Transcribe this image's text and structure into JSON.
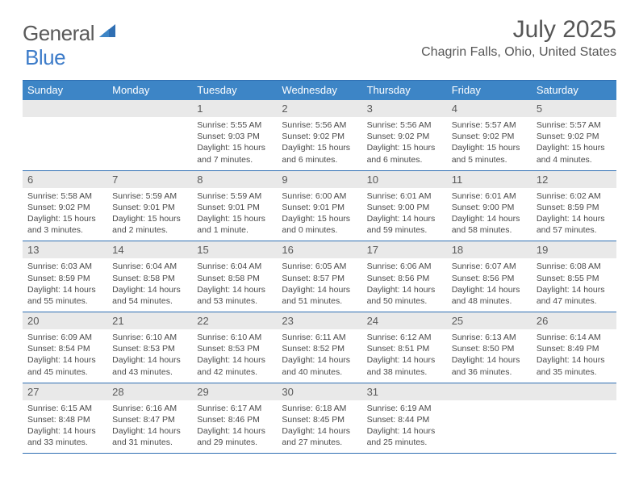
{
  "brand": {
    "word1": "General",
    "word2": "Blue"
  },
  "title": "July 2025",
  "location": "Chagrin Falls, Ohio, United States",
  "colors": {
    "headerBar": "#3d85c6",
    "rule": "#2f6fb3",
    "dayNumBg": "#e9e9e9",
    "text": "#4a4a4a",
    "brandGray": "#5a5a5a",
    "brandBlue": "#3d7cc9",
    "bg": "#ffffff"
  },
  "fonts": {
    "title_pt": 30,
    "location_pt": 16,
    "dow_pt": 13,
    "daynum_pt": 13,
    "body_pt": 10.5,
    "logo_pt": 26
  },
  "daysOfWeek": [
    "Sunday",
    "Monday",
    "Tuesday",
    "Wednesday",
    "Thursday",
    "Friday",
    "Saturday"
  ],
  "weeks": [
    [
      {
        "n": "",
        "sunrise": "",
        "sunset": "",
        "daylight1": "",
        "daylight2": ""
      },
      {
        "n": "",
        "sunrise": "",
        "sunset": "",
        "daylight1": "",
        "daylight2": ""
      },
      {
        "n": "1",
        "sunrise": "Sunrise: 5:55 AM",
        "sunset": "Sunset: 9:03 PM",
        "daylight1": "Daylight: 15 hours",
        "daylight2": "and 7 minutes."
      },
      {
        "n": "2",
        "sunrise": "Sunrise: 5:56 AM",
        "sunset": "Sunset: 9:02 PM",
        "daylight1": "Daylight: 15 hours",
        "daylight2": "and 6 minutes."
      },
      {
        "n": "3",
        "sunrise": "Sunrise: 5:56 AM",
        "sunset": "Sunset: 9:02 PM",
        "daylight1": "Daylight: 15 hours",
        "daylight2": "and 6 minutes."
      },
      {
        "n": "4",
        "sunrise": "Sunrise: 5:57 AM",
        "sunset": "Sunset: 9:02 PM",
        "daylight1": "Daylight: 15 hours",
        "daylight2": "and 5 minutes."
      },
      {
        "n": "5",
        "sunrise": "Sunrise: 5:57 AM",
        "sunset": "Sunset: 9:02 PM",
        "daylight1": "Daylight: 15 hours",
        "daylight2": "and 4 minutes."
      }
    ],
    [
      {
        "n": "6",
        "sunrise": "Sunrise: 5:58 AM",
        "sunset": "Sunset: 9:02 PM",
        "daylight1": "Daylight: 15 hours",
        "daylight2": "and 3 minutes."
      },
      {
        "n": "7",
        "sunrise": "Sunrise: 5:59 AM",
        "sunset": "Sunset: 9:01 PM",
        "daylight1": "Daylight: 15 hours",
        "daylight2": "and 2 minutes."
      },
      {
        "n": "8",
        "sunrise": "Sunrise: 5:59 AM",
        "sunset": "Sunset: 9:01 PM",
        "daylight1": "Daylight: 15 hours",
        "daylight2": "and 1 minute."
      },
      {
        "n": "9",
        "sunrise": "Sunrise: 6:00 AM",
        "sunset": "Sunset: 9:01 PM",
        "daylight1": "Daylight: 15 hours",
        "daylight2": "and 0 minutes."
      },
      {
        "n": "10",
        "sunrise": "Sunrise: 6:01 AM",
        "sunset": "Sunset: 9:00 PM",
        "daylight1": "Daylight: 14 hours",
        "daylight2": "and 59 minutes."
      },
      {
        "n": "11",
        "sunrise": "Sunrise: 6:01 AM",
        "sunset": "Sunset: 9:00 PM",
        "daylight1": "Daylight: 14 hours",
        "daylight2": "and 58 minutes."
      },
      {
        "n": "12",
        "sunrise": "Sunrise: 6:02 AM",
        "sunset": "Sunset: 8:59 PM",
        "daylight1": "Daylight: 14 hours",
        "daylight2": "and 57 minutes."
      }
    ],
    [
      {
        "n": "13",
        "sunrise": "Sunrise: 6:03 AM",
        "sunset": "Sunset: 8:59 PM",
        "daylight1": "Daylight: 14 hours",
        "daylight2": "and 55 minutes."
      },
      {
        "n": "14",
        "sunrise": "Sunrise: 6:04 AM",
        "sunset": "Sunset: 8:58 PM",
        "daylight1": "Daylight: 14 hours",
        "daylight2": "and 54 minutes."
      },
      {
        "n": "15",
        "sunrise": "Sunrise: 6:04 AM",
        "sunset": "Sunset: 8:58 PM",
        "daylight1": "Daylight: 14 hours",
        "daylight2": "and 53 minutes."
      },
      {
        "n": "16",
        "sunrise": "Sunrise: 6:05 AM",
        "sunset": "Sunset: 8:57 PM",
        "daylight1": "Daylight: 14 hours",
        "daylight2": "and 51 minutes."
      },
      {
        "n": "17",
        "sunrise": "Sunrise: 6:06 AM",
        "sunset": "Sunset: 8:56 PM",
        "daylight1": "Daylight: 14 hours",
        "daylight2": "and 50 minutes."
      },
      {
        "n": "18",
        "sunrise": "Sunrise: 6:07 AM",
        "sunset": "Sunset: 8:56 PM",
        "daylight1": "Daylight: 14 hours",
        "daylight2": "and 48 minutes."
      },
      {
        "n": "19",
        "sunrise": "Sunrise: 6:08 AM",
        "sunset": "Sunset: 8:55 PM",
        "daylight1": "Daylight: 14 hours",
        "daylight2": "and 47 minutes."
      }
    ],
    [
      {
        "n": "20",
        "sunrise": "Sunrise: 6:09 AM",
        "sunset": "Sunset: 8:54 PM",
        "daylight1": "Daylight: 14 hours",
        "daylight2": "and 45 minutes."
      },
      {
        "n": "21",
        "sunrise": "Sunrise: 6:10 AM",
        "sunset": "Sunset: 8:53 PM",
        "daylight1": "Daylight: 14 hours",
        "daylight2": "and 43 minutes."
      },
      {
        "n": "22",
        "sunrise": "Sunrise: 6:10 AM",
        "sunset": "Sunset: 8:53 PM",
        "daylight1": "Daylight: 14 hours",
        "daylight2": "and 42 minutes."
      },
      {
        "n": "23",
        "sunrise": "Sunrise: 6:11 AM",
        "sunset": "Sunset: 8:52 PM",
        "daylight1": "Daylight: 14 hours",
        "daylight2": "and 40 minutes."
      },
      {
        "n": "24",
        "sunrise": "Sunrise: 6:12 AM",
        "sunset": "Sunset: 8:51 PM",
        "daylight1": "Daylight: 14 hours",
        "daylight2": "and 38 minutes."
      },
      {
        "n": "25",
        "sunrise": "Sunrise: 6:13 AM",
        "sunset": "Sunset: 8:50 PM",
        "daylight1": "Daylight: 14 hours",
        "daylight2": "and 36 minutes."
      },
      {
        "n": "26",
        "sunrise": "Sunrise: 6:14 AM",
        "sunset": "Sunset: 8:49 PM",
        "daylight1": "Daylight: 14 hours",
        "daylight2": "and 35 minutes."
      }
    ],
    [
      {
        "n": "27",
        "sunrise": "Sunrise: 6:15 AM",
        "sunset": "Sunset: 8:48 PM",
        "daylight1": "Daylight: 14 hours",
        "daylight2": "and 33 minutes."
      },
      {
        "n": "28",
        "sunrise": "Sunrise: 6:16 AM",
        "sunset": "Sunset: 8:47 PM",
        "daylight1": "Daylight: 14 hours",
        "daylight2": "and 31 minutes."
      },
      {
        "n": "29",
        "sunrise": "Sunrise: 6:17 AM",
        "sunset": "Sunset: 8:46 PM",
        "daylight1": "Daylight: 14 hours",
        "daylight2": "and 29 minutes."
      },
      {
        "n": "30",
        "sunrise": "Sunrise: 6:18 AM",
        "sunset": "Sunset: 8:45 PM",
        "daylight1": "Daylight: 14 hours",
        "daylight2": "and 27 minutes."
      },
      {
        "n": "31",
        "sunrise": "Sunrise: 6:19 AM",
        "sunset": "Sunset: 8:44 PM",
        "daylight1": "Daylight: 14 hours",
        "daylight2": "and 25 minutes."
      },
      {
        "n": "",
        "sunrise": "",
        "sunset": "",
        "daylight1": "",
        "daylight2": ""
      },
      {
        "n": "",
        "sunrise": "",
        "sunset": "",
        "daylight1": "",
        "daylight2": ""
      }
    ]
  ]
}
